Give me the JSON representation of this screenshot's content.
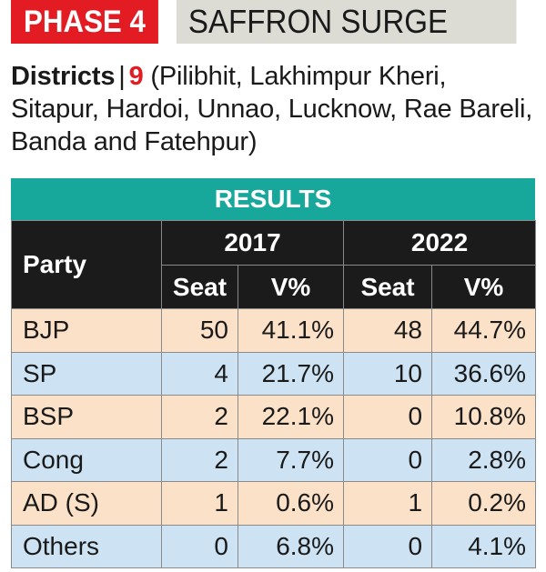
{
  "header": {
    "phase": "PHASE 4",
    "headline": "SAFFRON SURGE"
  },
  "districts": {
    "label": "Districts",
    "separator": "|",
    "count": "9",
    "list": "(Pilibhit, Lakhimpur Kheri, Sitapur, Hardoi, Unnao, Lucknow, Rae Bareli, Banda and Fatehpur)"
  },
  "colors": {
    "phase_red": "#e31b23",
    "results_teal": "#18a79b",
    "header_black": "#1b1b1b",
    "row_peach": "#fbe1c8",
    "row_blue": "#cde3f4"
  },
  "chart_data": {
    "type": "table",
    "title": "RESULTS",
    "party_header": "Party",
    "years": [
      "2017",
      "2022"
    ],
    "subheaders": [
      "Seat",
      "V%"
    ],
    "rows": [
      {
        "party": "BJP",
        "seat_2017": "50",
        "vote_2017": "41.1%",
        "seat_2022": "48",
        "vote_2022": "44.7%"
      },
      {
        "party": "SP",
        "seat_2017": "4",
        "vote_2017": "21.7%",
        "seat_2022": "10",
        "vote_2022": "36.6%"
      },
      {
        "party": "BSP",
        "seat_2017": "2",
        "vote_2017": "22.1%",
        "seat_2022": "0",
        "vote_2022": "10.8%"
      },
      {
        "party": "Cong",
        "seat_2017": "2",
        "vote_2017": "7.7%",
        "seat_2022": "0",
        "vote_2022": "2.8%"
      },
      {
        "party": "AD (S)",
        "seat_2017": "1",
        "vote_2017": "0.6%",
        "seat_2022": "1",
        "vote_2022": "0.2%"
      },
      {
        "party": "Others",
        "seat_2017": "0",
        "vote_2017": "6.8%",
        "seat_2022": "0",
        "vote_2022": "4.1%"
      }
    ]
  }
}
